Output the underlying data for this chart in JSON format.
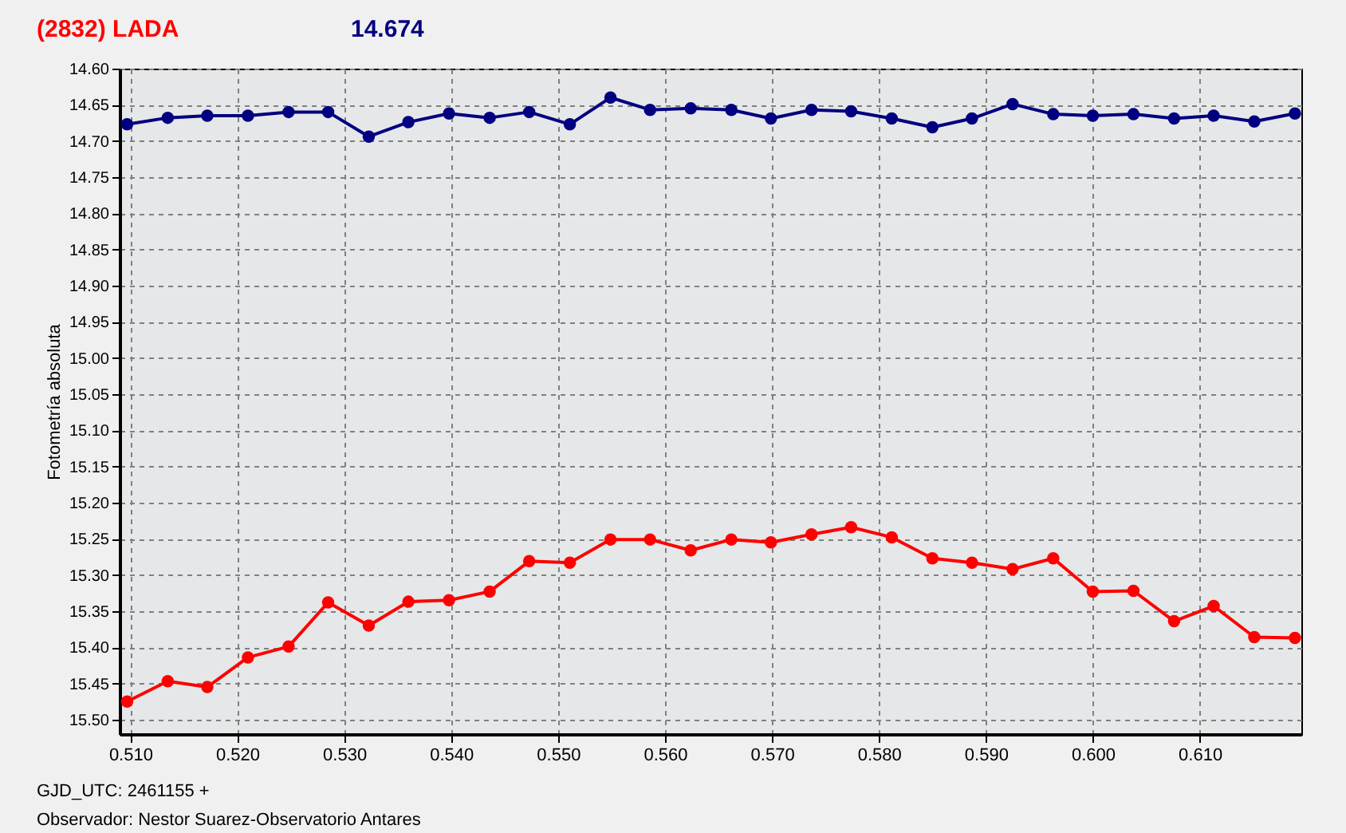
{
  "chart_data": {
    "type": "line",
    "title": "(2832) LADA",
    "ylabel": "Fotometría absoluta",
    "annotations": [
      "14.674",
      "GJD_UTC: 2461155 +",
      "Observador: Nestor Suarez-Observatorio Antares"
    ],
    "x": [
      0.5097,
      0.5135,
      0.5172,
      0.521,
      0.5248,
      0.5285,
      0.5323,
      0.536,
      0.5398,
      0.5436,
      0.5473,
      0.5511,
      0.5549,
      0.5586,
      0.5624,
      0.5662,
      0.5699,
      0.5737,
      0.5774,
      0.5812,
      0.585,
      0.5887,
      0.5925,
      0.5963,
      0.6,
      0.6038,
      0.6076,
      0.6113,
      0.6151,
      0.6189
    ],
    "series": [
      {
        "color": "#000080",
        "values": [
          14.677,
          14.668,
          14.665,
          14.665,
          14.66,
          14.66,
          14.694,
          14.674,
          14.662,
          14.668,
          14.66,
          14.677,
          14.64,
          14.657,
          14.655,
          14.657,
          14.669,
          14.657,
          14.659,
          14.669,
          14.681,
          14.669,
          14.649,
          14.663,
          14.665,
          14.663,
          14.669,
          14.665,
          14.673,
          14.662
        ]
      },
      {
        "color": "#ff0000",
        "values": [
          15.475,
          15.447,
          15.455,
          15.414,
          15.399,
          15.338,
          15.37,
          15.337,
          15.335,
          15.323,
          15.281,
          15.283,
          15.251,
          15.251,
          15.266,
          15.251,
          15.255,
          15.244,
          15.234,
          15.248,
          15.277,
          15.283,
          15.292,
          15.277,
          15.323,
          15.322,
          15.364,
          15.343,
          15.386,
          15.387
        ]
      }
    ],
    "xlim": [
      0.509,
      0.6195
    ],
    "xticks": [
      {
        "value": 0.51,
        "label": "0.510"
      },
      {
        "value": 0.52,
        "label": "0.520"
      },
      {
        "value": 0.53,
        "label": "0.530"
      },
      {
        "value": 0.54,
        "label": "0.540"
      },
      {
        "value": 0.55,
        "label": "0.550"
      },
      {
        "value": 0.56,
        "label": "0.560"
      },
      {
        "value": 0.57,
        "label": "0.570"
      },
      {
        "value": 0.58,
        "label": "0.580"
      },
      {
        "value": 0.59,
        "label": "0.590"
      },
      {
        "value": 0.6,
        "label": "0.600"
      },
      {
        "value": 0.61,
        "label": "0.610"
      }
    ],
    "ylim": [
      15.52,
      14.6
    ],
    "yticks": [
      {
        "value": 14.6,
        "label": "14.60"
      },
      {
        "value": 14.65,
        "label": "14.65"
      },
      {
        "value": 14.7,
        "label": "14.70"
      },
      {
        "value": 14.75,
        "label": "14.75"
      },
      {
        "value": 14.8,
        "label": "14.80"
      },
      {
        "value": 14.85,
        "label": "14.85"
      },
      {
        "value": 14.9,
        "label": "14.90"
      },
      {
        "value": 14.95,
        "label": "14.95"
      },
      {
        "value": 15.0,
        "label": "15.00"
      },
      {
        "value": 15.05,
        "label": "15.05"
      },
      {
        "value": 15.1,
        "label": "15.10"
      },
      {
        "value": 15.15,
        "label": "15.15"
      },
      {
        "value": 15.2,
        "label": "15.20"
      },
      {
        "value": 15.25,
        "label": "15.25"
      },
      {
        "value": 15.3,
        "label": "15.30"
      },
      {
        "value": 15.35,
        "label": "15.35"
      },
      {
        "value": 15.4,
        "label": "15.40"
      },
      {
        "value": 15.45,
        "label": "15.45"
      },
      {
        "value": 15.5,
        "label": "15.50"
      }
    ],
    "grid": true,
    "marker": "circle",
    "line_style": "solid"
  }
}
